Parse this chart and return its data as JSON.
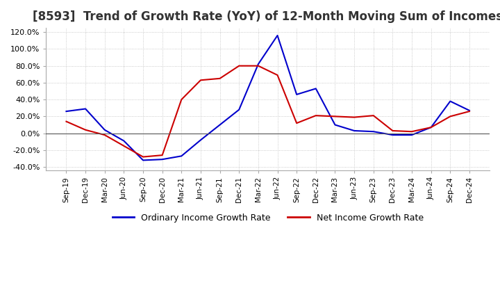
{
  "title": "[8593]  Trend of Growth Rate (YoY) of 12-Month Moving Sum of Incomes",
  "title_fontsize": 12,
  "ylim": [
    -0.44,
    1.25
  ],
  "yticks": [
    -0.4,
    -0.2,
    0.0,
    0.2,
    0.4,
    0.6,
    0.8,
    1.0,
    1.2
  ],
  "background_color": "#ffffff",
  "grid_color": "#bbbbbb",
  "legend_labels": [
    "Ordinary Income Growth Rate",
    "Net Income Growth Rate"
  ],
  "legend_colors": [
    "#0000cc",
    "#cc0000"
  ],
  "x_labels": [
    "Sep-19",
    "Dec-19",
    "Mar-20",
    "Jun-20",
    "Sep-20",
    "Dec-20",
    "Mar-21",
    "Jun-21",
    "Sep-21",
    "Dec-21",
    "Mar-22",
    "Jun-22",
    "Sep-22",
    "Dec-22",
    "Mar-23",
    "Jun-23",
    "Sep-23",
    "Dec-23",
    "Mar-24",
    "Jun-24",
    "Sep-24",
    "Dec-24"
  ],
  "ordinary_income": [
    0.26,
    0.29,
    0.04,
    -0.09,
    -0.32,
    -0.31,
    -0.27,
    -0.08,
    0.1,
    0.28,
    0.82,
    1.16,
    0.46,
    0.53,
    0.1,
    0.03,
    0.02,
    -0.02,
    -0.02,
    0.07,
    0.38,
    0.27
  ],
  "net_income": [
    0.14,
    0.04,
    -0.02,
    -0.15,
    -0.28,
    -0.26,
    0.4,
    0.63,
    0.65,
    0.8,
    0.8,
    0.69,
    0.12,
    0.21,
    0.2,
    0.19,
    0.21,
    0.03,
    0.02,
    0.07,
    0.2,
    0.26
  ]
}
